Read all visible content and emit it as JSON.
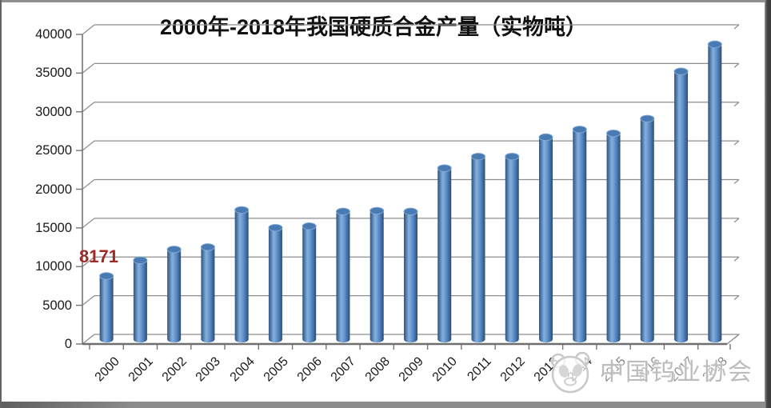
{
  "chart_data": {
    "type": "bar",
    "style": "3d-cylinder",
    "title": "2000年-2018年我国硬质合金产量（实物吨）",
    "categories": [
      "2000",
      "2001",
      "2002",
      "2003",
      "2004",
      "2005",
      "2006",
      "2007",
      "2008",
      "2009",
      "2010",
      "2011",
      "2012",
      "2013",
      "2014",
      "2015",
      "2016",
      "2017",
      "2018"
    ],
    "values": [
      8171,
      10200,
      11600,
      11900,
      16700,
      14400,
      14600,
      16500,
      16600,
      16500,
      22100,
      23600,
      23600,
      26100,
      27100,
      26600,
      28500,
      34600,
      38100
    ],
    "xlabel": "",
    "ylabel": "",
    "ylim": [
      0,
      40000
    ],
    "ytick_step": 5000,
    "yticks": [
      0,
      5000,
      10000,
      15000,
      20000,
      25000,
      30000,
      35000,
      40000
    ],
    "grid": true,
    "legend": "none",
    "annotations": [
      {
        "category": "2000",
        "text": "8171",
        "color": "#9e2a26"
      }
    ],
    "colors": {
      "bar_mid": "#4f81bd",
      "bar_edge_dark": "#2c4d73",
      "bar_edge_left": "#33587f",
      "bar_highlight": "#85aedd",
      "bar_top": "#4a7ab2",
      "bar_top_rim": "#7ea6d4",
      "gridline": "#8e8e8e",
      "axis": "#757575",
      "baseline": "#6e6e6e",
      "background": "#ffffff"
    }
  },
  "watermark": {
    "text": "中国钨业协会",
    "logo": "panda-association-logo",
    "color": "#bdbdbd"
  }
}
